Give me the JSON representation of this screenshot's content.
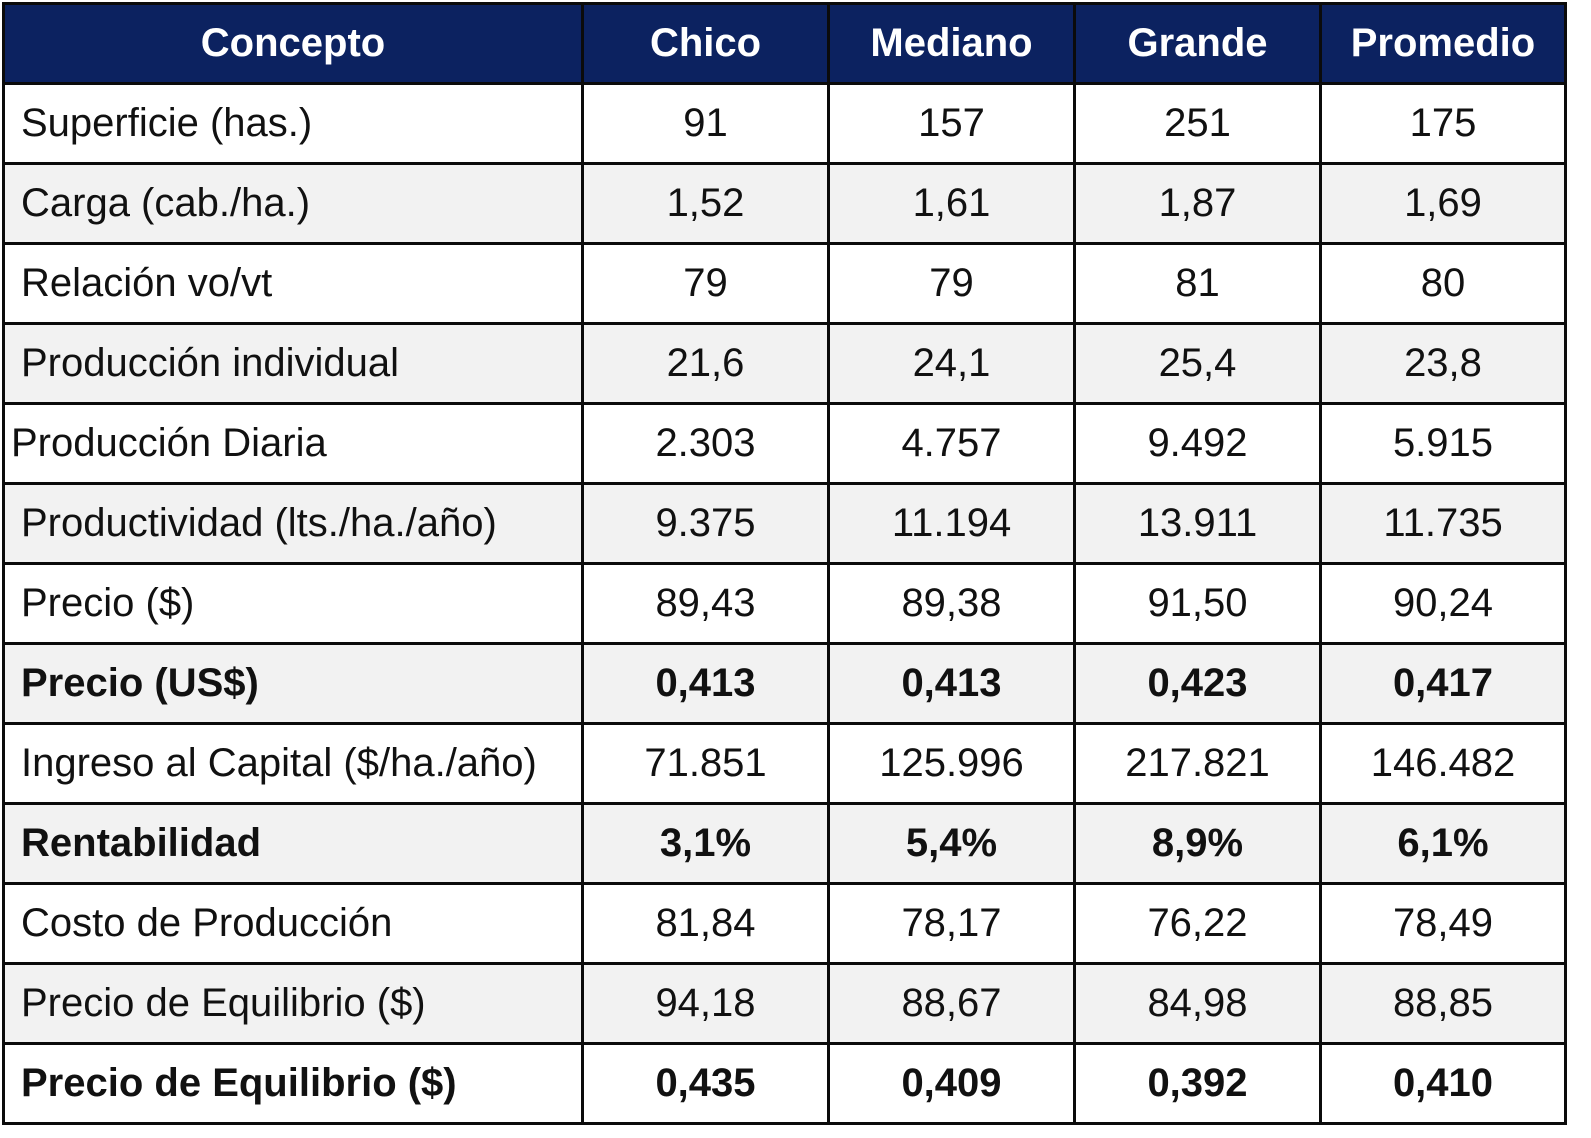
{
  "header": {
    "colors": {
      "header_bg": "#0c2260",
      "header_text": "#ffffff",
      "alt_row_bg": "#f2f2f2"
    },
    "columns": [
      "Concepto",
      "Chico",
      "Mediano",
      "Grande",
      "Promedio"
    ]
  },
  "rows": [
    {
      "label": "Superficie (has.)",
      "values": [
        "91",
        "157",
        "251",
        "175"
      ],
      "bold": false
    },
    {
      "label": "Carga (cab./ha.)",
      "values": [
        "1,52",
        "1,61",
        "1,87",
        "1,69"
      ],
      "bold": false
    },
    {
      "label": "Relación vo/vt",
      "values": [
        "79",
        "79",
        "81",
        "80"
      ],
      "bold": false
    },
    {
      "label": "Producción individual",
      "values": [
        "21,6",
        "24,1",
        "25,4",
        "23,8"
      ],
      "bold": false
    },
    {
      "label": "Producción Diaria",
      "values": [
        "2.303",
        "4.757",
        "9.492",
        "5.915"
      ],
      "bold": false
    },
    {
      "label": "Productividad (lts./ha./año)",
      "values": [
        "9.375",
        "11.194",
        "13.911",
        "11.735"
      ],
      "bold": false
    },
    {
      "label": "Precio ($)",
      "values": [
        "89,43",
        "89,38",
        "91,50",
        "90,24"
      ],
      "bold": false
    },
    {
      "label": "Precio (US$)",
      "values": [
        "0,413",
        "0,413",
        "0,423",
        "0,417"
      ],
      "bold": true
    },
    {
      "label": "Ingreso al Capital ($/ha./año)",
      "values": [
        "71.851",
        "125.996",
        "217.821",
        "146.482"
      ],
      "bold": false
    },
    {
      "label": "Rentabilidad",
      "values": [
        "3,1%",
        "5,4%",
        "8,9%",
        "6,1%"
      ],
      "bold": true
    },
    {
      "label": "Costo de Producción",
      "values": [
        "81,84",
        "78,17",
        "76,22",
        "78,49"
      ],
      "bold": false
    },
    {
      "label": "Precio de Equilibrio ($)",
      "values": [
        "94,18",
        "88,67",
        "84,98",
        "88,85"
      ],
      "bold": false
    },
    {
      "label": "Precio de Equilibrio ($)",
      "values": [
        "0,435",
        "0,409",
        "0,392",
        "0,410"
      ],
      "bold": true
    }
  ]
}
